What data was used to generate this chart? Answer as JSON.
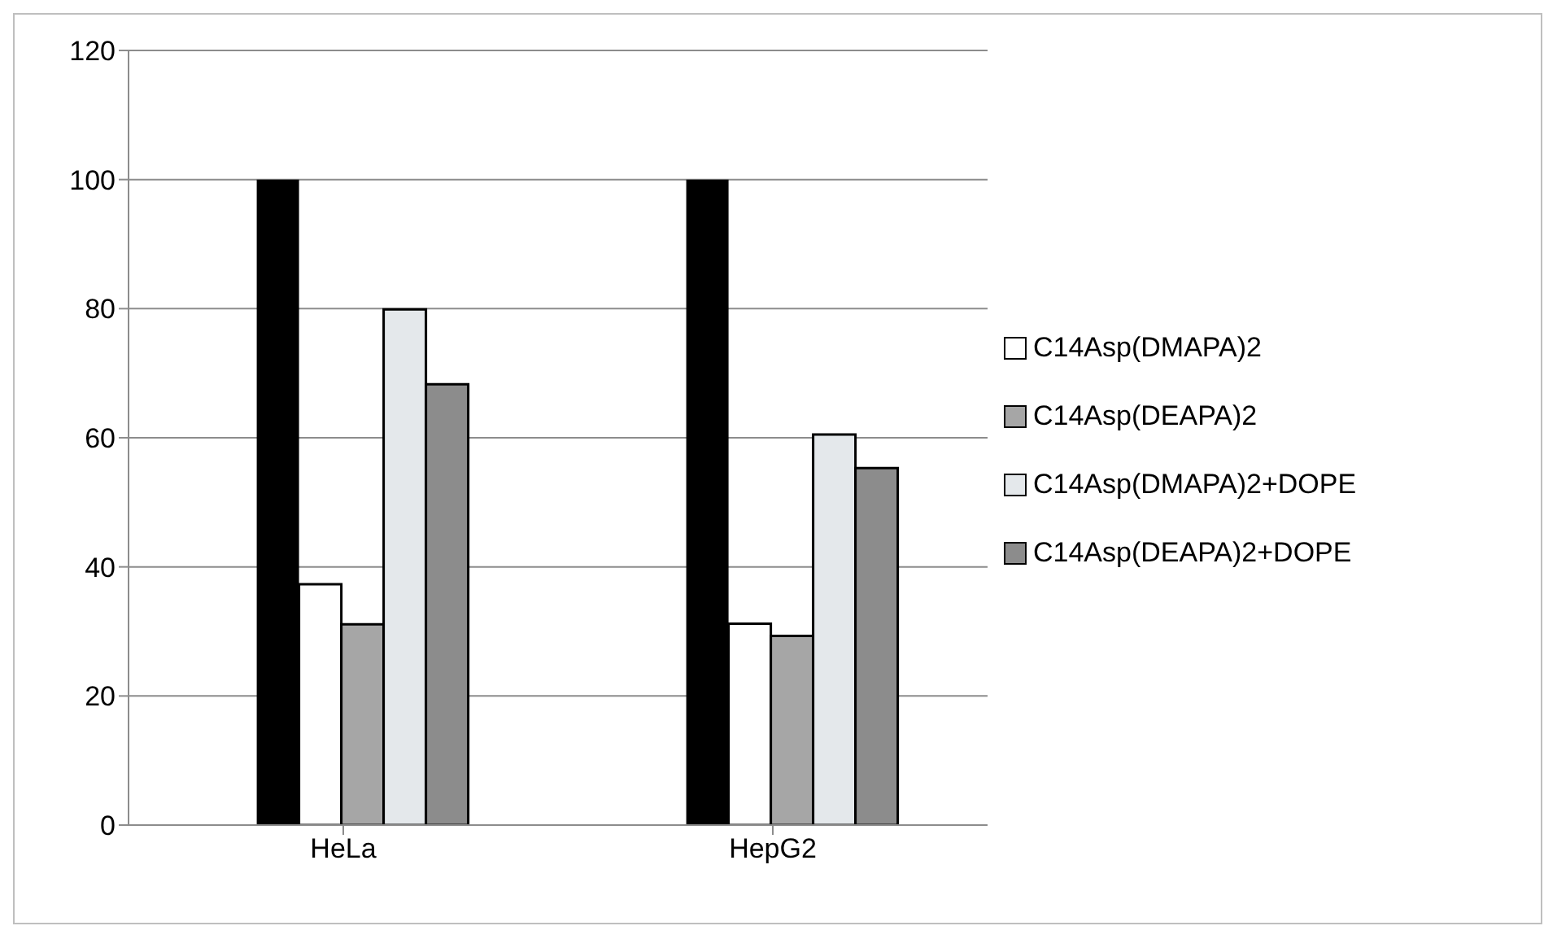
{
  "chart_data": {
    "type": "bar",
    "categories": [
      "HeLa",
      "HepG2"
    ],
    "series": [
      {
        "color": "#a6a6a6",
        "values": [
          0,
          0
        ]
      },
      {
        "color": "#000000",
        "values": [
          100,
          100
        ]
      },
      {
        "name": "C14Asp(DMAPA)2",
        "color": "#ffffff",
        "values": [
          37.3,
          31.2
        ]
      },
      {
        "name": "C14Asp(DEAPA)2",
        "color": "#a6a6a6",
        "values": [
          31.1,
          29.3
        ]
      },
      {
        "name": "C14Asp(DMAPA)2+DOPE",
        "color": "#e4e8eb",
        "values": [
          79.9,
          60.5
        ]
      },
      {
        "name": "C14Asp(DEAPA)2+DOPE",
        "color": "#8c8c8c",
        "values": [
          68.3,
          55.3
        ]
      }
    ],
    "ylim": [
      0,
      120
    ],
    "yticks": [
      0,
      20,
      40,
      60,
      80,
      100,
      120
    ],
    "grid": "y",
    "legend": "right"
  }
}
